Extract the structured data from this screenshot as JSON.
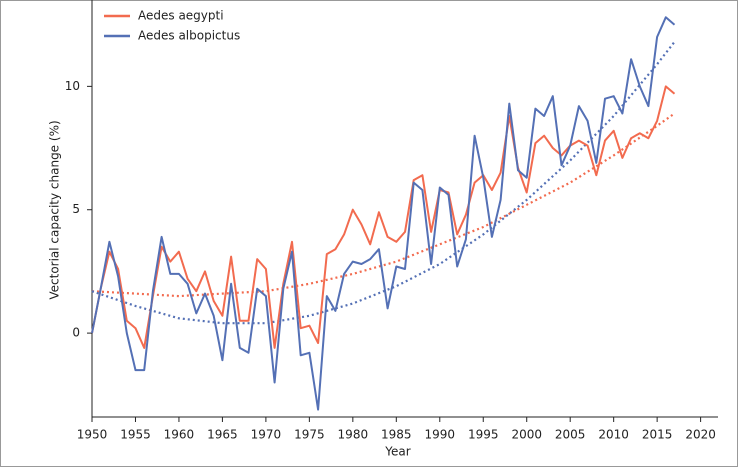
{
  "chart_data": {
    "type": "line",
    "xlabel": "Year",
    "ylabel": "Vectorial capacity change (%)",
    "x": [
      1950,
      1951,
      1952,
      1953,
      1954,
      1955,
      1956,
      1957,
      1958,
      1959,
      1960,
      1961,
      1962,
      1963,
      1964,
      1965,
      1966,
      1967,
      1968,
      1969,
      1970,
      1971,
      1972,
      1973,
      1974,
      1975,
      1976,
      1977,
      1978,
      1979,
      1980,
      1981,
      1982,
      1983,
      1984,
      1985,
      1986,
      1987,
      1988,
      1989,
      1990,
      1991,
      1992,
      1993,
      1994,
      1995,
      1996,
      1997,
      1998,
      1999,
      2000,
      2001,
      2002,
      2003,
      2004,
      2005,
      2006,
      2007,
      2008,
      2009,
      2010,
      2011,
      2012,
      2013,
      2014,
      2015,
      2016,
      2017
    ],
    "series": [
      {
        "name": "Aedes aegypti",
        "color": "#f26b4f",
        "values": [
          0,
          1.8,
          3.3,
          2.6,
          0.5,
          0.2,
          -0.6,
          1.5,
          3.5,
          2.9,
          3.3,
          2.2,
          1.7,
          2.5,
          1.3,
          0.7,
          3.1,
          0.5,
          0.5,
          3.0,
          2.6,
          -0.6,
          2.0,
          3.7,
          0.2,
          0.3,
          -0.4,
          3.2,
          3.4,
          4.0,
          5.0,
          4.4,
          3.6,
          4.9,
          3.9,
          3.7,
          4.1,
          6.2,
          6.4,
          4.1,
          5.8,
          5.7,
          4.0,
          4.8,
          6.1,
          6.4,
          5.8,
          6.5,
          8.8,
          6.7,
          5.7,
          7.7,
          8.0,
          7.5,
          7.2,
          7.6,
          7.8,
          7.6,
          6.4,
          7.8,
          8.2,
          7.1,
          7.9,
          8.1,
          7.9,
          8.6,
          10.0,
          9.7
        ]
      },
      {
        "name": "Aedes albopictus",
        "color": "#5470b5",
        "values": [
          0,
          1.8,
          3.7,
          2.3,
          0.0,
          -1.5,
          -1.5,
          1.7,
          3.9,
          2.4,
          2.4,
          2.0,
          0.8,
          1.6,
          0.7,
          -1.1,
          2.0,
          -0.6,
          -0.8,
          1.8,
          1.5,
          -2.0,
          1.8,
          3.3,
          -0.9,
          -0.8,
          -3.1,
          1.5,
          0.9,
          2.4,
          2.9,
          2.8,
          3.0,
          3.4,
          1.0,
          2.7,
          2.6,
          6.1,
          5.8,
          2.8,
          5.9,
          5.6,
          2.7,
          3.8,
          8.0,
          6.3,
          3.9,
          5.4,
          9.3,
          6.6,
          6.3,
          9.1,
          8.8,
          9.6,
          6.8,
          7.6,
          9.2,
          8.6,
          6.9,
          9.5,
          9.6,
          8.9,
          11.1,
          10.0,
          9.2,
          12.0,
          12.8,
          12.5
        ]
      }
    ],
    "trends": [
      {
        "color": "#f26b4f",
        "style": "dotted",
        "x": [
          1950,
          1955,
          1960,
          1965,
          1970,
          1975,
          1980,
          1985,
          1990,
          1995,
          2000,
          2005,
          2010,
          2015,
          2017
        ],
        "values": [
          1.7,
          1.6,
          1.5,
          1.6,
          1.7,
          2.0,
          2.4,
          2.9,
          3.6,
          4.3,
          5.2,
          6.1,
          7.2,
          8.4,
          8.9
        ]
      },
      {
        "color": "#5470b5",
        "style": "dotted",
        "x": [
          1950,
          1955,
          1960,
          1965,
          1970,
          1975,
          1980,
          1985,
          1990,
          1995,
          2000,
          2005,
          2010,
          2015,
          2017
        ],
        "values": [
          1.7,
          1.1,
          0.6,
          0.4,
          0.4,
          0.7,
          1.2,
          1.9,
          2.8,
          4.0,
          5.4,
          7.0,
          8.8,
          10.9,
          11.8
        ]
      }
    ],
    "xlim": [
      1950,
      2022
    ],
    "xticks": [
      1950,
      1955,
      1960,
      1965,
      1970,
      1975,
      1980,
      1985,
      1990,
      1995,
      2000,
      2005,
      2010,
      2015,
      2020
    ],
    "ylim": [
      -3.4,
      13.5
    ],
    "yticks": [
      0,
      5,
      10
    ],
    "legend": "top-left"
  }
}
